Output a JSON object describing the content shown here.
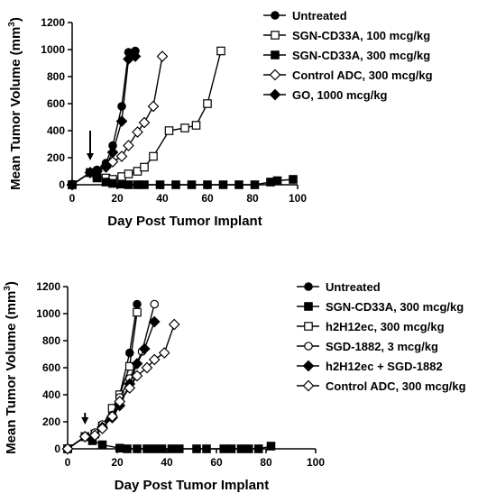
{
  "chart_data": [
    {
      "type": "line",
      "xlabel": "Day Post Tumor Implant",
      "ylabel": "Mean Tumor Volume (mm",
      "ylabel_sup": "3",
      "ylabel_end": ")",
      "xlim": [
        0,
        100
      ],
      "ylim": [
        0,
        1200
      ],
      "xticks": [
        0,
        20,
        40,
        60,
        80,
        100
      ],
      "yticks": [
        0,
        200,
        400,
        600,
        800,
        1000,
        1200
      ],
      "legend_position": "top-right",
      "arrow_day": 8,
      "series": [
        {
          "name": "Untreated",
          "marker": "circle-filled",
          "x": [
            0,
            8,
            11,
            15,
            18,
            22,
            25,
            28
          ],
          "y": [
            0,
            90,
            110,
            160,
            290,
            580,
            980,
            990
          ]
        },
        {
          "name": "SGN-CD33A, 100 mcg/kg",
          "marker": "square-open",
          "x": [
            0,
            8,
            11,
            15,
            18,
            22,
            25,
            29,
            32,
            36,
            43,
            50,
            55,
            60,
            66
          ],
          "y": [
            0,
            90,
            70,
            50,
            40,
            60,
            80,
            100,
            130,
            210,
            400,
            420,
            440,
            600,
            990
          ]
        },
        {
          "name": "SGN-CD33A, 300 mcg/kg",
          "marker": "square-filled",
          "x": [
            0,
            8,
            11,
            15,
            18,
            22,
            25,
            29,
            32,
            39,
            46,
            53,
            60,
            67,
            74,
            81,
            88,
            91,
            98
          ],
          "y": [
            0,
            90,
            50,
            20,
            10,
            5,
            0,
            0,
            0,
            0,
            0,
            0,
            0,
            0,
            0,
            0,
            20,
            30,
            40
          ]
        },
        {
          "name": "Control ADC, 300 mcg/kg",
          "marker": "diamond-open",
          "x": [
            0,
            8,
            11,
            15,
            18,
            22,
            25,
            29,
            32,
            36,
            40
          ],
          "y": [
            0,
            90,
            100,
            130,
            170,
            210,
            290,
            390,
            460,
            580,
            950
          ]
        },
        {
          "name": "GO, 1000 mcg/kg",
          "marker": "diamond-filled",
          "x": [
            0,
            8,
            11,
            15,
            18,
            22,
            25,
            28
          ],
          "y": [
            0,
            90,
            100,
            140,
            240,
            470,
            930,
            950
          ]
        }
      ]
    },
    {
      "type": "line",
      "xlabel": "Day Post Tumor Implant",
      "ylabel": "Mean Tumor Volume (mm",
      "ylabel_sup": "3",
      "ylabel_end": ")",
      "xlim": [
        0,
        100
      ],
      "ylim": [
        0,
        1200
      ],
      "xticks": [
        0,
        20,
        40,
        60,
        80,
        100
      ],
      "yticks": [
        0,
        200,
        400,
        600,
        800,
        1000,
        1200
      ],
      "legend_position": "top-right",
      "arrow_day": 7,
      "series": [
        {
          "name": "Untreated",
          "marker": "circle-filled",
          "x": [
            0,
            7,
            11,
            14,
            18,
            21,
            25,
            28
          ],
          "y": [
            0,
            90,
            110,
            160,
            250,
            400,
            710,
            1070
          ]
        },
        {
          "name": "SGN-CD33A, 300 mcg/kg",
          "marker": "square-filled",
          "x": [
            0,
            7,
            10,
            14,
            21,
            24,
            28,
            32,
            35,
            38,
            42,
            45,
            52,
            56,
            63,
            66,
            70,
            73,
            77,
            82
          ],
          "y": [
            0,
            90,
            60,
            30,
            5,
            0,
            0,
            0,
            0,
            0,
            0,
            0,
            0,
            0,
            0,
            0,
            0,
            0,
            0,
            20
          ]
        },
        {
          "name": "h2H12ec, 300 mcg/kg",
          "marker": "square-open",
          "x": [
            0,
            7,
            11,
            14,
            18,
            21,
            25,
            28
          ],
          "y": [
            0,
            90,
            110,
            170,
            300,
            400,
            610,
            1010
          ]
        },
        {
          "name": "SGD-1882, 3 mcg/kg",
          "marker": "circle-open",
          "x": [
            0,
            7,
            11,
            14,
            18,
            21,
            25,
            30,
            35
          ],
          "y": [
            0,
            90,
            120,
            180,
            250,
            380,
            520,
            720,
            1070
          ]
        },
        {
          "name": "h2H12ec + SGD-1882",
          "marker": "diamond-filled",
          "x": [
            0,
            7,
            11,
            14,
            18,
            21,
            25,
            28,
            31,
            35
          ],
          "y": [
            0,
            90,
            100,
            160,
            230,
            320,
            480,
            630,
            740,
            940
          ]
        },
        {
          "name": "Control ADC, 300 mcg/kg",
          "marker": "diamond-open",
          "x": [
            0,
            7,
            11,
            14,
            18,
            21,
            25,
            28,
            32,
            35,
            39,
            43
          ],
          "y": [
            0,
            90,
            100,
            150,
            240,
            350,
            450,
            540,
            600,
            660,
            710,
            920
          ]
        }
      ]
    }
  ]
}
